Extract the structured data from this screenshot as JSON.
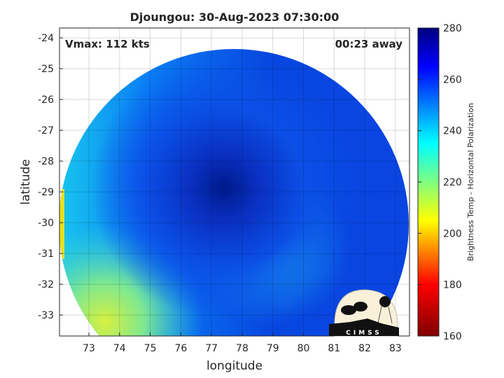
{
  "title": "Djoungou: 30-Aug-2023 07:30:00",
  "vmax_label": "Vmax: 112 kts",
  "away_label": "00:23 away",
  "xlabel": "longitude",
  "ylabel": "latitude",
  "colorbar_label": "Brightness Temp - Horizontal Polarization",
  "logo_text": "CIMSS",
  "x_ticks": [
    "73",
    "74",
    "75",
    "76",
    "77",
    "78",
    "79",
    "80",
    "81",
    "82",
    "83"
  ],
  "y_ticks": [
    "-24",
    "-25",
    "-26",
    "-27",
    "-28",
    "-29",
    "-30",
    "-31",
    "-32",
    "-33"
  ],
  "colorbar_ticks": [
    "280",
    "260",
    "240",
    "220",
    "200",
    "180",
    "160"
  ],
  "x_range": [
    72.04,
    83.46
  ],
  "y_range": [
    -33.68,
    -23.68
  ],
  "colorbar_range": [
    160,
    280
  ],
  "colormap": [
    "#800000",
    "#ff0000",
    "#ffff00",
    "#00ffff",
    "#0000ff",
    "#000080"
  ]
}
